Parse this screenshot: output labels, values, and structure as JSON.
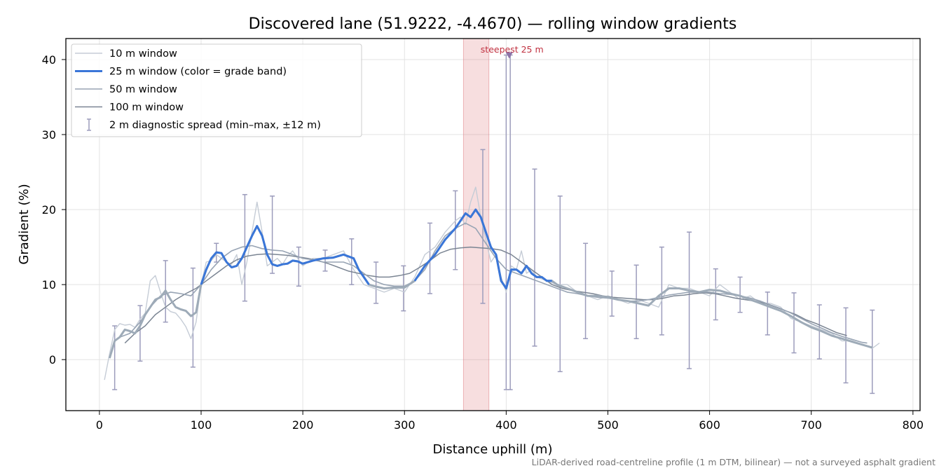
{
  "chart_data": {
    "type": "line",
    "title": "Discovered lane (51.9222, -4.4670) — rolling window gradients",
    "xlabel": "Distance uphill (m)",
    "ylabel": "Gradient (%)",
    "xlim": [
      -33,
      807
    ],
    "ylim": [
      -6.8,
      42.8
    ],
    "xticks": [
      0,
      100,
      200,
      300,
      400,
      500,
      600,
      700,
      800
    ],
    "yticks": [
      0,
      10,
      20,
      30,
      40
    ],
    "grid": true,
    "legend_position": "upper-left",
    "footnote": "LiDAR-derived road-centreline profile (1 m DTM, bilinear) — not a surveyed asphalt gradient",
    "highlight": {
      "label": "steepest 25 m",
      "x_start": 358,
      "x_end": 383,
      "marker_x": 403,
      "marker_y": 40.5,
      "color": "#d9676f"
    },
    "series": [
      {
        "name": "10 m window",
        "color": "#c5ccd6",
        "x": [
          5,
          10,
          15,
          20,
          25,
          30,
          35,
          40,
          45,
          50,
          55,
          60,
          65,
          70,
          75,
          80,
          85,
          90,
          95,
          100,
          105,
          110,
          115,
          120,
          125,
          130,
          135,
          140,
          145,
          150,
          155,
          160,
          165,
          170,
          175,
          180,
          185,
          190,
          195,
          200,
          210,
          220,
          230,
          240,
          250,
          260,
          270,
          280,
          290,
          300,
          310,
          320,
          330,
          340,
          350,
          355,
          360,
          365,
          370,
          375,
          380,
          385,
          390,
          395,
          400,
          405,
          410,
          415,
          420,
          425,
          430,
          440,
          450,
          460,
          470,
          480,
          490,
          500,
          510,
          520,
          530,
          540,
          550,
          560,
          570,
          580,
          590,
          600,
          610,
          620,
          630,
          640,
          650,
          660,
          670,
          680,
          690,
          700,
          710,
          720,
          730,
          740,
          750,
          760,
          767
        ],
        "values": [
          -2.7,
          0.8,
          4.0,
          4.8,
          4.6,
          4.7,
          4.3,
          5.4,
          6.2,
          10.5,
          11.2,
          9.0,
          7.0,
          6.4,
          6.2,
          5.4,
          4.4,
          2.8,
          5.0,
          10.0,
          13.0,
          13.2,
          14.0,
          13.5,
          13.0,
          12.7,
          14.0,
          10.0,
          13.0,
          17.0,
          21.0,
          17.0,
          12.5,
          13.0,
          13.5,
          12.7,
          13.8,
          14.5,
          13.5,
          12.5,
          13.5,
          13.5,
          14.0,
          14.5,
          12.0,
          10.0,
          9.5,
          9.0,
          9.5,
          9.0,
          11.0,
          14.0,
          15.0,
          17.0,
          18.5,
          19.0,
          18.0,
          21.0,
          23.0,
          19.0,
          16.0,
          13.0,
          14.0,
          11.0,
          9.0,
          12.5,
          12.0,
          14.5,
          11.5,
          12.0,
          11.0,
          10.5,
          10.0,
          10.0,
          9.0,
          8.5,
          8.0,
          8.5,
          8.0,
          7.5,
          8.0,
          7.5,
          7.0,
          10.0,
          9.5,
          9.5,
          9.0,
          8.5,
          10.0,
          9.0,
          8.0,
          8.5,
          7.5,
          7.5,
          7.0,
          5.5,
          5.0,
          4.5,
          4.0,
          3.5,
          2.5,
          2.5,
          2.0,
          1.5,
          2.2
        ]
      },
      {
        "name": "25 m window (color = grade band)",
        "color": "#3a76d8",
        "gray_color": "#9eabb8",
        "bands": [
          {
            "from": 100,
            "to": 265
          },
          {
            "from": 310,
            "to": 445
          }
        ],
        "x": [
          10,
          15,
          20,
          25,
          30,
          35,
          40,
          45,
          50,
          55,
          60,
          65,
          70,
          75,
          80,
          85,
          90,
          95,
          100,
          105,
          110,
          115,
          120,
          125,
          130,
          135,
          140,
          145,
          150,
          155,
          160,
          165,
          170,
          175,
          180,
          185,
          190,
          195,
          200,
          210,
          220,
          230,
          240,
          250,
          255,
          260,
          265,
          270,
          280,
          290,
          300,
          310,
          320,
          330,
          340,
          350,
          355,
          360,
          365,
          370,
          375,
          380,
          385,
          390,
          395,
          400,
          405,
          410,
          415,
          420,
          425,
          430,
          435,
          440,
          445,
          450,
          460,
          470,
          480,
          490,
          500,
          510,
          520,
          530,
          540,
          550,
          560,
          570,
          580,
          590,
          600,
          610,
          620,
          630,
          640,
          650,
          660,
          670,
          680,
          690,
          700,
          710,
          720,
          730,
          740,
          750,
          760
        ],
        "values": [
          0.2,
          2.5,
          3.0,
          4.0,
          3.8,
          3.5,
          4.5,
          6.0,
          7.0,
          8.0,
          8.3,
          9.2,
          8.0,
          7.0,
          6.7,
          6.5,
          5.8,
          6.3,
          10.0,
          12.0,
          13.5,
          14.3,
          14.2,
          13.0,
          12.3,
          12.5,
          13.5,
          15.0,
          16.5,
          17.8,
          16.5,
          14.0,
          12.7,
          12.5,
          12.7,
          12.8,
          13.2,
          13.1,
          12.8,
          13.2,
          13.5,
          13.6,
          14.0,
          13.5,
          12.0,
          11.0,
          10.0,
          9.8,
          9.5,
          9.6,
          9.6,
          10.5,
          12.5,
          14.0,
          16.0,
          17.5,
          18.5,
          19.5,
          19.0,
          20.0,
          19.0,
          17.0,
          15.0,
          14.0,
          10.5,
          9.5,
          12.0,
          12.0,
          11.5,
          12.5,
          11.5,
          11.0,
          11.0,
          10.5,
          10.5,
          10.0,
          9.5,
          9.0,
          8.5,
          8.5,
          8.3,
          8.0,
          7.8,
          7.5,
          7.2,
          8.5,
          9.5,
          9.5,
          9.2,
          9.0,
          9.3,
          9.2,
          8.8,
          8.5,
          8.0,
          7.5,
          7.0,
          6.5,
          5.8,
          5.0,
          4.3,
          3.8,
          3.2,
          2.8,
          2.4,
          2.0,
          1.6
        ]
      },
      {
        "name": "50 m window",
        "color": "#98a4b4",
        "x": [
          20,
          30,
          40,
          50,
          60,
          70,
          80,
          90,
          100,
          110,
          120,
          130,
          140,
          150,
          160,
          170,
          180,
          190,
          200,
          210,
          220,
          230,
          240,
          250,
          260,
          270,
          280,
          290,
          300,
          310,
          320,
          330,
          340,
          350,
          360,
          370,
          380,
          390,
          400,
          410,
          420,
          430,
          440,
          450,
          460,
          470,
          480,
          490,
          500,
          510,
          520,
          530,
          540,
          550,
          560,
          570,
          580,
          590,
          600,
          610,
          620,
          630,
          640,
          650,
          660,
          670,
          680,
          690,
          700,
          710,
          720,
          730,
          740,
          750,
          755
        ],
        "values": [
          3.0,
          3.5,
          5.0,
          7.0,
          8.5,
          9.0,
          8.8,
          8.5,
          10.0,
          12.0,
          13.5,
          14.5,
          15.0,
          15.2,
          14.8,
          14.6,
          14.5,
          14.0,
          13.5,
          13.3,
          13.0,
          13.0,
          13.0,
          12.5,
          11.5,
          10.5,
          10.0,
          9.8,
          9.8,
          10.5,
          12.0,
          14.5,
          16.5,
          17.5,
          18.2,
          17.5,
          15.5,
          13.5,
          12.0,
          11.5,
          11.0,
          10.5,
          10.0,
          9.5,
          9.0,
          8.8,
          8.5,
          8.3,
          8.2,
          8.0,
          7.8,
          7.8,
          8.0,
          8.3,
          8.6,
          8.8,
          9.0,
          9.0,
          9.0,
          8.8,
          8.7,
          8.5,
          8.2,
          7.8,
          7.3,
          6.8,
          6.2,
          5.5,
          4.8,
          4.2,
          3.6,
          3.1,
          2.7,
          2.3,
          2.2
        ]
      },
      {
        "name": "100 m window",
        "color": "#7b8593",
        "x": [
          25,
          35,
          45,
          55,
          65,
          75,
          85,
          95,
          105,
          115,
          125,
          135,
          145,
          155,
          165,
          175,
          185,
          195,
          205,
          215,
          225,
          235,
          245,
          255,
          265,
          275,
          285,
          295,
          305,
          315,
          325,
          335,
          345,
          355,
          365,
          375,
          385,
          395,
          405,
          415,
          425,
          435,
          445,
          455,
          465,
          475,
          485,
          495,
          505,
          515,
          525,
          535,
          545,
          555,
          565,
          575,
          585,
          595,
          605,
          615,
          625,
          635,
          645,
          655,
          665,
          675,
          685,
          695,
          705,
          715,
          725,
          735
        ],
        "values": [
          2.2,
          3.5,
          4.5,
          6.0,
          7.0,
          8.0,
          8.8,
          9.5,
          10.5,
          11.5,
          12.5,
          13.3,
          13.8,
          14.0,
          14.1,
          14.0,
          13.9,
          13.7,
          13.5,
          13.2,
          12.8,
          12.3,
          11.8,
          11.5,
          11.2,
          11.0,
          11.0,
          11.2,
          11.5,
          12.3,
          13.2,
          14.2,
          14.7,
          14.9,
          15.0,
          14.9,
          14.8,
          14.6,
          14.0,
          13.0,
          12.0,
          11.0,
          10.0,
          9.5,
          9.2,
          9.0,
          8.8,
          8.5,
          8.3,
          8.2,
          8.1,
          8.0,
          8.0,
          8.2,
          8.5,
          8.6,
          8.8,
          8.9,
          8.8,
          8.5,
          8.2,
          8.0,
          7.8,
          7.5,
          7.0,
          6.5,
          6.0,
          5.3,
          4.8,
          4.2,
          3.6,
          3.2
        ]
      },
      {
        "name": "2 m diagnostic spread (min–max, ±12 m)",
        "type": "errorbar",
        "color": "#9c9cbc",
        "x": [
          15,
          40,
          65,
          92,
          115,
          143,
          170,
          196,
          222,
          248,
          272,
          299,
          325,
          350,
          377,
          400,
          404,
          428,
          453,
          478,
          504,
          528,
          553,
          580,
          606,
          630,
          657,
          683,
          708,
          734,
          760
        ],
        "low": [
          -4.0,
          -0.2,
          5.0,
          -1.0,
          13.0,
          7.8,
          11.5,
          9.8,
          11.8,
          10.0,
          7.5,
          6.5,
          8.8,
          12.0,
          7.5,
          -4.0,
          -4.0,
          1.8,
          -1.6,
          2.8,
          5.8,
          2.8,
          3.3,
          -1.2,
          5.3,
          6.3,
          3.3,
          0.9,
          0.1,
          -3.1,
          -4.5
        ],
        "high": [
          4.5,
          7.2,
          13.2,
          12.2,
          15.5,
          22.0,
          21.8,
          15.0,
          14.6,
          16.1,
          13.0,
          12.5,
          18.2,
          22.5,
          28.0,
          40.6,
          40.6,
          25.4,
          21.8,
          15.5,
          11.8,
          12.6,
          15.0,
          17.0,
          12.1,
          11.0,
          9.0,
          8.9,
          7.3,
          6.9,
          6.6
        ]
      }
    ]
  }
}
